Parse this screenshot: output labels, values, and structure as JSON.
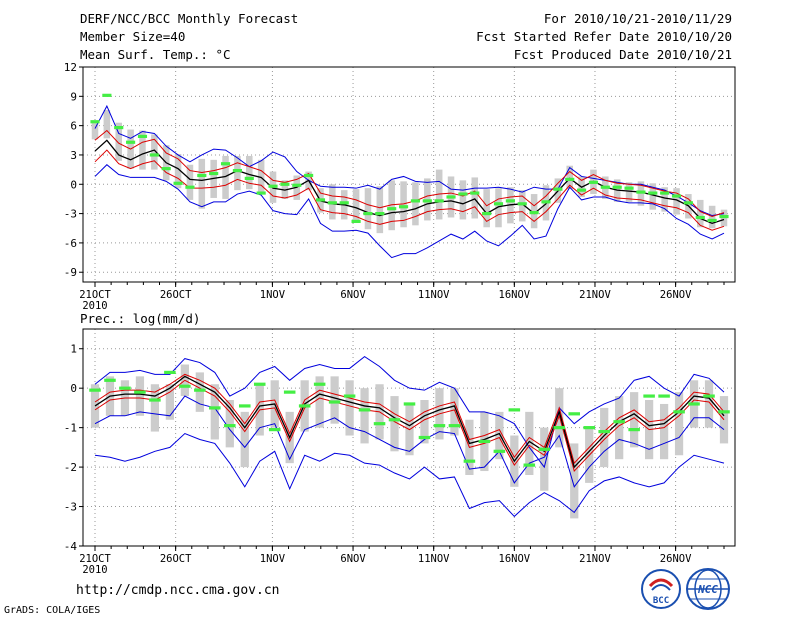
{
  "header": {
    "title": "DERF/NCC/BCC Monthly Forecast",
    "member_size": "Member Size=40",
    "variable": "Mean Surf. Temp.: °C",
    "period": "For 2010/10/21-2010/11/29",
    "started": "Fcst Started Refer Date 2010/10/20",
    "produced": "Fcst Produced Date 2010/10/21"
  },
  "footer": {
    "url": "http://cmdp.ncc.cma.gov.cn",
    "grads": "GrADS: COLA/IGES",
    "logo_left_text": "BCC",
    "logo_right_text": "NCC"
  },
  "colors": {
    "upper_envelope": "#0000dd",
    "lower_envelope": "#0000dd",
    "spread": "#dd0000",
    "mean": "#000000",
    "box": "#cccccc",
    "marker": "#44ee44",
    "grid": "#999999"
  },
  "chart_data": [
    {
      "type": "line",
      "title": "Mean Surf. Temp.: °C",
      "xlabel": "",
      "ylabel": "°C",
      "ylim": [
        -10,
        12
      ],
      "yticks": [
        12,
        9,
        6,
        3,
        0,
        -3,
        -6,
        -9
      ],
      "xtick_labels": [
        "21OCT",
        "26OCT",
        "1NOV",
        "6NOV",
        "11NOV",
        "16NOV",
        "21NOV",
        "26NOV"
      ],
      "xtick_days": [
        0,
        5,
        11,
        16,
        21,
        26,
        31,
        36
      ],
      "year_label": "2010",
      "series": [
        {
          "name": "max",
          "values": [
            0.8,
            2.0,
            1.0,
            0.7,
            0.7,
            0.7,
            0.3,
            -0.5,
            -1.8,
            -2.3,
            -1.8,
            -1.8,
            -1.0,
            -0.7,
            -1.1,
            -2.7,
            -3.0,
            -3.1,
            -1.5,
            -4.0,
            -4.8,
            -4.8,
            -4.7,
            -5.0,
            -6.3,
            -7.5,
            -7.1,
            -7.1,
            -6.5,
            -5.8,
            -5.1,
            -5.6,
            -4.8,
            -5.8,
            -6.3,
            -5.3,
            -4.2,
            -5.6,
            -5.3,
            -2.5,
            -0.3,
            -1.6,
            -1.3,
            -1.3,
            -1.7,
            -1.9,
            -1.9,
            -2.0,
            -2.5,
            -3.5,
            -4.1,
            -5.1,
            -5.6,
            -5.0
          ]
        },
        {
          "name": "upper",
          "values": [
            5.7,
            8.0,
            5.2,
            4.7,
            5.4,
            5.2,
            3.9,
            3.0,
            2.3,
            3.0,
            3.6,
            3.5,
            2.7,
            1.8,
            2.4,
            3.3,
            2.8,
            1.3,
            0.4,
            -0.2,
            -0.3,
            -0.3,
            -0.4,
            -0.1,
            -0.5,
            0.5,
            0.8,
            0.3,
            0.2,
            0.3,
            -0.5,
            -0.6,
            -0.4,
            -0.4,
            -0.3,
            -0.5,
            -0.8,
            -0.3,
            -0.5,
            -0.5,
            1.7,
            0.8,
            0.6,
            0.4,
            0.2,
            0.0,
            0.0,
            -0.3,
            -0.6,
            -1.2,
            -1.9,
            -2.7,
            -3.2,
            -3.0
          ]
        }
      ],
      "mean": [
        3.4,
        4.5,
        3.0,
        2.5,
        3.1,
        3.5,
        2.2,
        1.6,
        0.5,
        0.4,
        0.6,
        0.8,
        1.4,
        1.0,
        0.7,
        -0.4,
        -0.6,
        -0.3,
        0.4,
        -1.7,
        -2.0,
        -2.1,
        -2.4,
        -2.9,
        -3.2,
        -2.9,
        -2.8,
        -2.5,
        -2.0,
        -1.8,
        -1.7,
        -2.0,
        -1.5,
        -3.0,
        -2.3,
        -2.1,
        -2.0,
        -3.0,
        -2.0,
        -0.7,
        0.6,
        -0.3,
        0.3,
        -0.3,
        -0.6,
        -0.7,
        -0.8,
        -1.1,
        -1.4,
        -1.6,
        -2.2,
        -3.5,
        -4.0,
        -3.6
      ],
      "spread_high": [
        4.5,
        5.5,
        4.2,
        3.6,
        4.3,
        4.6,
        3.2,
        2.6,
        1.4,
        1.2,
        1.4,
        1.7,
        2.2,
        1.8,
        1.4,
        0.4,
        0.2,
        0.5,
        1.1,
        -0.9,
        -1.2,
        -1.3,
        -1.6,
        -2.1,
        -2.4,
        -2.1,
        -2.0,
        -1.7,
        -1.2,
        -1.0,
        -0.9,
        -1.2,
        -0.7,
        -2.2,
        -1.5,
        -1.3,
        -1.2,
        -2.2,
        -1.2,
        0.1,
        1.3,
        0.4,
        1.0,
        0.4,
        0.1,
        0.0,
        -0.1,
        -0.4,
        -0.7,
        -0.9,
        -1.5,
        -2.8,
        -3.3,
        -2.9
      ],
      "spread_low": [
        2.3,
        3.5,
        2.1,
        1.6,
        2.1,
        2.4,
        1.2,
        0.6,
        -0.4,
        -0.4,
        -0.3,
        -0.1,
        0.5,
        0.1,
        -0.1,
        -1.2,
        -1.4,
        -1.1,
        -0.4,
        -2.6,
        -2.9,
        -3.0,
        -3.3,
        -3.8,
        -4.1,
        -3.8,
        -3.7,
        -3.3,
        -2.8,
        -2.6,
        -2.5,
        -2.8,
        -2.3,
        -3.8,
        -3.1,
        -2.9,
        -2.8,
        -3.8,
        -2.8,
        -1.5,
        -0.1,
        -1.1,
        -0.4,
        -1.1,
        -1.4,
        -1.5,
        -1.6,
        -1.9,
        -2.2,
        -2.4,
        -2.9,
        -4.2,
        -4.7,
        -4.3
      ],
      "box_high": [
        6.5,
        7.6,
        6.3,
        5.6,
        5.5,
        5.1,
        4.0,
        3.1,
        2.0,
        2.6,
        2.5,
        2.9,
        2.9,
        2.9,
        2.5,
        1.3,
        0.4,
        0.9,
        1.3,
        -0.4,
        0.0,
        -0.6,
        -0.5,
        -0.4,
        -0.2,
        0.4,
        0.3,
        0.2,
        0.6,
        1.5,
        0.8,
        0.4,
        0.7,
        -0.5,
        -0.4,
        -0.3,
        -0.6,
        -1.0,
        -0.1,
        0.6,
        1.9,
        0.8,
        1.5,
        0.8,
        0.5,
        0.2,
        0.3,
        0.1,
        -0.3,
        -0.4,
        -1.0,
        -1.6,
        -2.2,
        -2.6
      ],
      "box_low": [
        4.6,
        4.7,
        2.4,
        1.6,
        1.5,
        1.5,
        0.4,
        -0.4,
        -1.6,
        -2.5,
        -1.4,
        -1.5,
        -0.6,
        -0.5,
        -0.9,
        -1.9,
        -1.5,
        -1.6,
        -0.6,
        -2.9,
        -3.6,
        -3.6,
        -3.8,
        -4.6,
        -5.0,
        -4.7,
        -4.4,
        -4.2,
        -3.7,
        -3.6,
        -3.4,
        -3.6,
        -3.5,
        -4.4,
        -4.4,
        -4.0,
        -3.8,
        -4.5,
        -3.7,
        -1.9,
        -0.5,
        -1.3,
        -1.0,
        -1.5,
        -1.8,
        -1.8,
        -2.2,
        -2.6,
        -2.8,
        -3.1,
        -3.5,
        -4.4,
        -4.5,
        -4.3
      ],
      "markers": [
        6.4,
        9.1,
        5.8,
        4.3,
        4.9,
        3.0,
        1.6,
        0.1,
        -0.3,
        0.9,
        1.1,
        2.1,
        1.4,
        0.6,
        -0.9,
        -0.2,
        0.0,
        -0.1,
        0.9,
        -1.6,
        -1.9,
        -1.9,
        -3.8,
        -3.0,
        -3.0,
        -2.5,
        -2.3,
        -1.7,
        -1.7,
        -1.7,
        -1.3,
        -1.0,
        -0.9,
        -3.0,
        -2.0,
        -1.7,
        -2.0,
        -2.9,
        -1.8,
        -0.5,
        0.5,
        -0.6,
        0.2,
        -0.3,
        -0.3,
        -0.4,
        -0.8,
        -0.9,
        -0.9,
        -1.2,
        -1.9,
        -3.4,
        -3.7,
        -3.3
      ]
    },
    {
      "type": "line",
      "title": "Prec.: log(mm/d)",
      "xlabel": "",
      "ylabel": "log(mm/d)",
      "ylim": [
        -4,
        1.5
      ],
      "yticks": [
        1,
        0,
        -1,
        -2,
        -3,
        -4
      ],
      "xtick_labels": [
        "21OCT",
        "26OCT",
        "1NOV",
        "6NOV",
        "11NOV",
        "16NOV",
        "21NOV",
        "26NOV"
      ],
      "xtick_days": [
        0,
        5,
        11,
        16,
        21,
        26,
        31,
        36
      ],
      "year_label": "2010",
      "series": [
        {
          "name": "max",
          "values": [
            0.1,
            0.4,
            0.4,
            0.45,
            0.35,
            0.35,
            0.75,
            0.65,
            0.4,
            -0.2,
            0.0,
            0.4,
            0.55,
            0.2,
            0.5,
            0.6,
            0.5,
            0.5,
            0.8,
            0.55,
            0.2,
            0.0,
            -0.05,
            0.15,
            0.0,
            -0.6,
            -0.6,
            -0.7,
            -0.9,
            -1.5,
            -2.0,
            -0.5,
            -0.9,
            -0.6,
            -0.4,
            -0.25,
            0.2,
            0.3,
            0.0,
            -0.2,
            0.35,
            0.25,
            -0.1
          ]
        },
        {
          "name": "min",
          "values": [
            -1.7,
            -1.75,
            -1.85,
            -1.75,
            -1.6,
            -1.5,
            -1.15,
            -1.3,
            -1.4,
            -1.9,
            -2.5,
            -1.85,
            -1.6,
            -2.55,
            -1.7,
            -1.85,
            -1.65,
            -1.7,
            -1.9,
            -1.95,
            -2.15,
            -2.3,
            -2.0,
            -2.3,
            -2.25,
            -3.05,
            -2.9,
            -2.85,
            -3.25,
            -2.9,
            -2.65,
            -2.85,
            -3.15,
            -2.6,
            -2.35,
            -2.25,
            -2.4,
            -2.5,
            -2.4,
            -2.0,
            -1.7,
            -1.8,
            -1.9
          ]
        },
        {
          "name": "upper",
          "values": [
            -0.9,
            -0.7,
            -0.7,
            -0.6,
            -0.65,
            -0.7,
            -0.2,
            -0.4,
            -0.5,
            -1.05,
            -1.5,
            -1.0,
            -0.9,
            -1.8,
            -1.05,
            -0.9,
            -0.75,
            -1.0,
            -1.1,
            -1.3,
            -1.5,
            -1.6,
            -1.3,
            -1.1,
            -1.15,
            -2.05,
            -2.0,
            -1.6,
            -2.4,
            -1.9,
            -1.75,
            -1.2,
            -2.5,
            -2.0,
            -1.6,
            -1.3,
            -1.4,
            -1.55,
            -1.4,
            -1.25,
            -0.75,
            -0.75,
            -1.05
          ]
        }
      ],
      "mean": [
        -0.45,
        -0.2,
        -0.15,
        -0.15,
        -0.2,
        0.0,
        0.3,
        0.1,
        -0.1,
        -0.5,
        -1.0,
        -0.45,
        -0.4,
        -1.25,
        -0.4,
        -0.15,
        -0.25,
        -0.35,
        -0.45,
        -0.5,
        -0.75,
        -0.95,
        -0.7,
        -0.55,
        -0.45,
        -1.4,
        -1.3,
        -1.15,
        -1.85,
        -1.35,
        -1.6,
        -0.6,
        -2.0,
        -1.6,
        -1.2,
        -0.85,
        -0.65,
        -0.95,
        -0.9,
        -0.6,
        -0.2,
        -0.25,
        -0.7
      ],
      "spread_high": [
        -0.35,
        -0.1,
        -0.05,
        -0.05,
        -0.1,
        0.1,
        0.35,
        0.2,
        0.0,
        -0.4,
        -0.9,
        -0.35,
        -0.3,
        -1.15,
        -0.3,
        -0.05,
        -0.15,
        -0.25,
        -0.35,
        -0.4,
        -0.65,
        -0.85,
        -0.6,
        -0.45,
        -0.35,
        -1.3,
        -1.2,
        -1.05,
        -1.75,
        -1.25,
        -1.5,
        -0.5,
        -1.9,
        -1.5,
        -1.1,
        -0.75,
        -0.55,
        -0.85,
        -0.8,
        -0.5,
        -0.1,
        -0.15,
        -0.6
      ],
      "spread_low": [
        -0.55,
        -0.3,
        -0.25,
        -0.25,
        -0.3,
        -0.1,
        0.2,
        0.0,
        -0.2,
        -0.6,
        -1.1,
        -0.55,
        -0.5,
        -1.35,
        -0.5,
        -0.25,
        -0.35,
        -0.45,
        -0.55,
        -0.6,
        -0.85,
        -1.05,
        -0.8,
        -0.65,
        -0.55,
        -1.5,
        -1.4,
        -1.25,
        -1.95,
        -1.45,
        -1.7,
        -0.7,
        -2.1,
        -1.7,
        -1.3,
        -0.95,
        -0.75,
        -1.05,
        -1.0,
        -0.7,
        -0.3,
        -0.35,
        -0.8
      ],
      "box_high": [
        0.1,
        0.3,
        0.2,
        0.3,
        0.1,
        0.1,
        0.6,
        0.4,
        0.1,
        -0.3,
        -0.6,
        0.1,
        0.2,
        -0.6,
        0.2,
        0.3,
        0.3,
        0.2,
        0.0,
        0.1,
        -0.2,
        -0.4,
        -0.3,
        0.0,
        0.0,
        -0.8,
        -0.6,
        -0.6,
        -1.2,
        -0.6,
        -1.0,
        0.0,
        -1.4,
        -1.0,
        -0.5,
        -0.2,
        -0.1,
        -0.3,
        -0.4,
        -0.1,
        0.2,
        0.2,
        -0.2
      ],
      "box_low": [
        -1.0,
        -0.7,
        -0.7,
        -0.7,
        -1.1,
        -0.8,
        -0.2,
        -0.6,
        -1.3,
        -1.5,
        -2.0,
        -1.2,
        -1.0,
        -1.9,
        -1.1,
        -1.0,
        -0.9,
        -1.2,
        -1.4,
        -1.3,
        -1.6,
        -1.7,
        -1.4,
        -1.3,
        -1.2,
        -2.2,
        -2.1,
        -1.8,
        -2.5,
        -2.2,
        -2.6,
        -1.5,
        -3.3,
        -2.4,
        -2.0,
        -1.8,
        -1.5,
        -1.8,
        -1.8,
        -1.7,
        -1.0,
        -1.0,
        -1.4
      ],
      "markers": [
        -0.05,
        0.2,
        0.0,
        -0.1,
        -0.3,
        0.4,
        0.05,
        -0.05,
        -0.5,
        -0.95,
        -0.45,
        0.1,
        -1.05,
        -0.1,
        -0.45,
        0.1,
        -0.35,
        -0.2,
        -0.55,
        -0.9,
        -0.8,
        -0.4,
        -1.25,
        -0.95,
        -0.95,
        -1.85,
        -1.35,
        -1.6,
        -0.55,
        -1.95,
        -1.55,
        -1.0,
        -0.65,
        -1.0,
        -1.1,
        -0.85,
        -1.05,
        -0.2,
        -0.2,
        -0.6,
        -0.4,
        -0.2,
        -0.6
      ]
    }
  ]
}
